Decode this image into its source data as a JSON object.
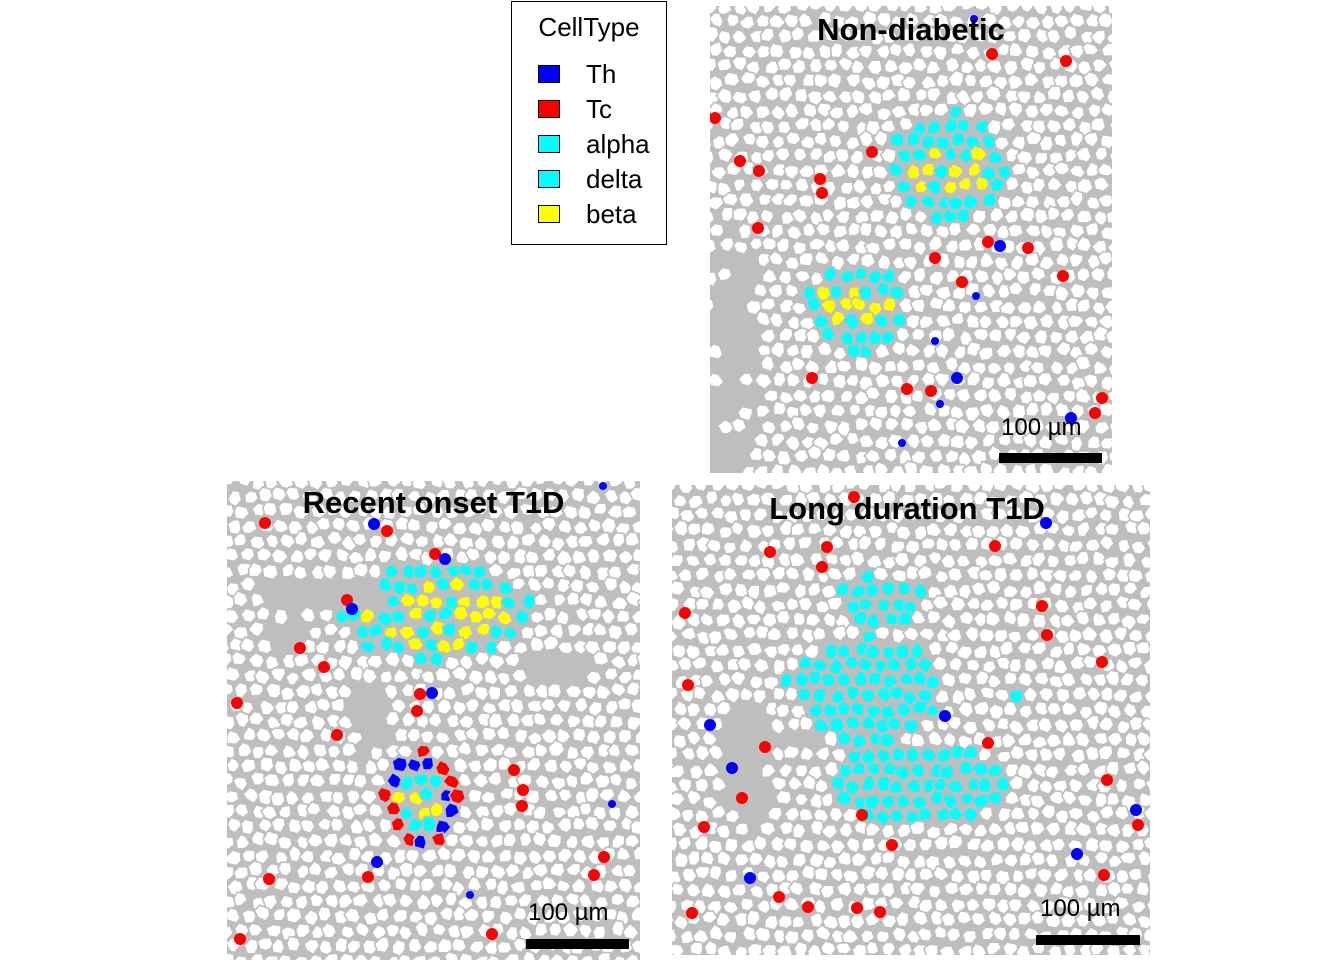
{
  "legend": {
    "title": "CellType",
    "items": [
      {
        "label": "Th",
        "color": "#0000ff"
      },
      {
        "label": "Tc",
        "color": "#ff0000"
      },
      {
        "label": "alpha",
        "color": "#00ffff"
      },
      {
        "label": "delta",
        "color": "#00ffff"
      },
      {
        "label": "beta",
        "color": "#ffff00"
      }
    ]
  },
  "panels": [
    {
      "title": "Non-diabetic",
      "scale_label": "100  µm"
    },
    {
      "title": "Recent onset T1D",
      "scale_label": "100  µm"
    },
    {
      "title": "Long duration T1D",
      "scale_label": "100  µm"
    }
  ],
  "colors": {
    "background_tissue": "#bebebe",
    "cell_fill": "#ffffff",
    "cell_border": "#bebebe"
  }
}
